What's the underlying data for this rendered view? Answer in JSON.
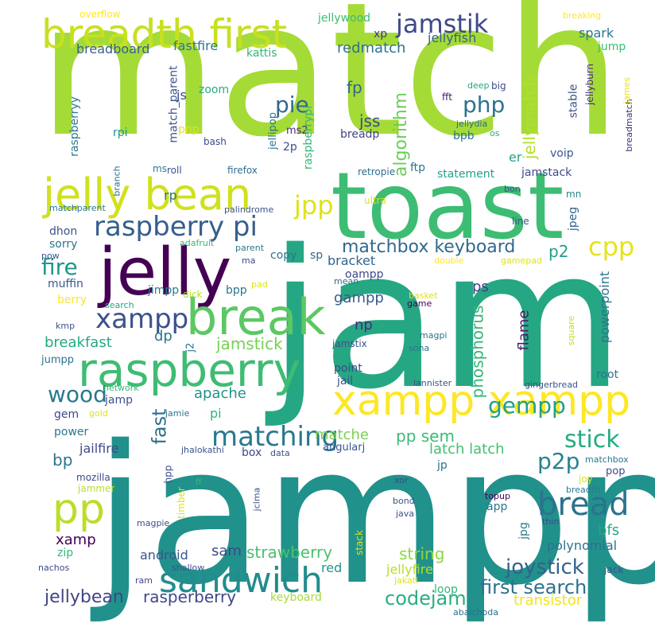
{
  "words": [
    {
      "text": "match",
      "color": "#a5db36"
    },
    {
      "text": "jampp",
      "color": "#21918c"
    },
    {
      "text": "jam",
      "color": "#26a784"
    },
    {
      "text": "toast",
      "color": "#3dbc74"
    },
    {
      "text": "jelly",
      "color": "#440154"
    },
    {
      "text": "breadth first",
      "color": "#c8e020"
    },
    {
      "text": "jelly bean",
      "color": "#d0e11c"
    },
    {
      "text": "break",
      "color": "#5cc863"
    },
    {
      "text": "raspberry",
      "color": "#3fbc73"
    },
    {
      "text": "xampp xampp",
      "color": "#fde725"
    },
    {
      "text": "raspberry pi",
      "color": "#355f8d"
    },
    {
      "text": "xampp",
      "color": "#3b528b"
    },
    {
      "text": "pp",
      "color": "#bade28"
    },
    {
      "text": "sandwich",
      "color": "#228c8d"
    },
    {
      "text": "bread",
      "color": "#2c728e"
    },
    {
      "text": "matching",
      "color": "#2a788e"
    },
    {
      "text": "jamstik",
      "color": "#3e4989"
    },
    {
      "text": "jpp",
      "color": "#dde318"
    },
    {
      "text": "cpp",
      "color": "#e5e419"
    },
    {
      "text": "php",
      "color": "#2c738e"
    },
    {
      "text": "pie",
      "color": "#30698e"
    },
    {
      "text": "matchbox keyboard",
      "color": "#31688e"
    },
    {
      "text": "fire",
      "color": "#1f978b"
    },
    {
      "text": "wood",
      "color": "#2a788e"
    },
    {
      "text": "stick",
      "color": "#25ab82"
    },
    {
      "text": "p2p",
      "color": "#26828e"
    },
    {
      "text": "gempp",
      "color": "#1fa188"
    },
    {
      "text": "joystick",
      "color": "#33638d"
    },
    {
      "text": "first search",
      "color": "#2d718e"
    },
    {
      "text": "codejam",
      "color": "#29af7f"
    },
    {
      "text": "jellybean",
      "color": "#414487"
    },
    {
      "text": "rasperberry",
      "color": "#3f4788"
    },
    {
      "text": "strawberry",
      "color": "#4ac16d"
    },
    {
      "text": "string",
      "color": "#8fd744"
    },
    {
      "text": "algorithm",
      "color": "#6ccd5a"
    },
    {
      "text": "jellymatch",
      "color": "#b5de2b"
    },
    {
      "text": "phosphorus",
      "color": "#35b779"
    },
    {
      "text": "fast",
      "color": "#2e6f8e"
    },
    {
      "text": "jamstick",
      "color": "#75d054"
    },
    {
      "text": "pp sem",
      "color": "#3bbb75"
    },
    {
      "text": "latch latch",
      "color": "#42be71"
    },
    {
      "text": "breakfast",
      "color": "#23a983"
    },
    {
      "text": "apache",
      "color": "#20928c"
    },
    {
      "text": "jailfire",
      "color": "#3e4a89"
    },
    {
      "text": "matche",
      "color": "#7ad151"
    },
    {
      "text": "redmatch",
      "color": "#2d718e"
    },
    {
      "text": "jellyfish",
      "color": "#34608d"
    },
    {
      "text": "spark",
      "color": "#2b758e"
    },
    {
      "text": "fp",
      "color": "#33638d"
    },
    {
      "text": "jss",
      "color": "#3e4989"
    },
    {
      "text": "p2",
      "color": "#1f9e89"
    },
    {
      "text": "gampp",
      "color": "#38588c"
    },
    {
      "text": "ps",
      "color": "#424086"
    },
    {
      "text": "np",
      "color": "#472a7a"
    },
    {
      "text": "flame",
      "color": "#481b6d"
    },
    {
      "text": "powerpoint",
      "color": "#2c728e"
    },
    {
      "text": "bp",
      "color": "#2a768e"
    },
    {
      "text": "dp",
      "color": "#2a778e"
    },
    {
      "text": "pi",
      "color": "#2fb47c"
    },
    {
      "text": "bracket",
      "color": "#32648e"
    },
    {
      "text": "transistor",
      "color": "#f1e51d"
    },
    {
      "text": "bfs",
      "color": "#22a785"
    },
    {
      "text": "polynomial",
      "color": "#2d718e"
    },
    {
      "text": "xamp",
      "color": "#440154"
    },
    {
      "text": "sam",
      "color": "#3e4a89"
    },
    {
      "text": "android",
      "color": "#39568c"
    },
    {
      "text": "red",
      "color": "#20928c"
    },
    {
      "text": "jellyfire",
      "color": "#b5de2b"
    },
    {
      "text": "keyboard",
      "color": "#a8db34"
    },
    {
      "text": "loop",
      "color": "#35b779"
    },
    {
      "text": "breadboard",
      "color": "#35608d"
    },
    {
      "text": "fastfire",
      "color": "#2a788e"
    },
    {
      "text": "kattis",
      "color": "#31b57b"
    },
    {
      "text": "jellywood",
      "color": "#3dbc74"
    },
    {
      "text": "xp",
      "color": "#453882"
    },
    {
      "text": "jump",
      "color": "#3bbb75"
    },
    {
      "text": "overflow",
      "color": "#fde725"
    },
    {
      "text": "breaking",
      "color": "#fde725"
    },
    {
      "text": "zoom",
      "color": "#25ac82"
    },
    {
      "text": "js",
      "color": "#3e4989"
    },
    {
      "text": "match_parent",
      "color": "#3a548c"
    },
    {
      "text": "raspberryy",
      "color": "#2a788e"
    },
    {
      "text": "rpi",
      "color": "#20928c"
    },
    {
      "text": "pnp",
      "color": "#e2e418"
    },
    {
      "text": "bash",
      "color": "#3e4989"
    },
    {
      "text": "roll",
      "color": "#3b528b"
    },
    {
      "text": "firefox",
      "color": "#2d708e"
    },
    {
      "text": "ms2",
      "color": "#472c7a"
    },
    {
      "text": "2p",
      "color": "#3c4f8a"
    },
    {
      "text": "jellipop",
      "color": "#2a768e"
    },
    {
      "text": "raspberrypi",
      "color": "#35b779"
    },
    {
      "text": "breadp",
      "color": "#414487"
    },
    {
      "text": "bpb",
      "color": "#2c738e"
    },
    {
      "text": "ftp",
      "color": "#2c738e"
    },
    {
      "text": "retropie",
      "color": "#2f6c8e"
    },
    {
      "text": "statement",
      "color": "#1fa188"
    },
    {
      "text": "jamstack",
      "color": "#3e4989"
    },
    {
      "text": "voip",
      "color": "#38588c"
    },
    {
      "text": "stable",
      "color": "#3b528b"
    },
    {
      "text": "jellyburn",
      "color": "#472d7b"
    },
    {
      "text": "breadmatch",
      "color": "#472c7a"
    },
    {
      "text": "james",
      "color": "#e5e419"
    },
    {
      "text": "big",
      "color": "#3e4a89"
    },
    {
      "text": "deep",
      "color": "#21a585"
    },
    {
      "text": "fft",
      "color": "#481769"
    },
    {
      "text": "jellydia",
      "color": "#2f6c8e"
    },
    {
      "text": "os",
      "color": "#29af7f"
    },
    {
      "text": "er",
      "color": "#20a486"
    },
    {
      "text": "bon",
      "color": "#3b528b"
    },
    {
      "text": "mn",
      "color": "#26828e"
    },
    {
      "text": "ultra",
      "color": "#dde318"
    },
    {
      "text": "line",
      "color": "#3b528b"
    },
    {
      "text": "jpeg",
      "color": "#34608d"
    },
    {
      "text": "matchparent",
      "color": "#2a788e"
    },
    {
      "text": "palindrome",
      "color": "#3a548c"
    },
    {
      "text": "branch",
      "color": "#31688e"
    },
    {
      "text": "ms",
      "color": "#287c8e"
    },
    {
      "text": "rp",
      "color": "#2c738e"
    },
    {
      "text": "dhon",
      "color": "#3b528b"
    },
    {
      "text": "sorry",
      "color": "#2c738e"
    },
    {
      "text": "pow",
      "color": "#3b528b"
    },
    {
      "text": "adafruit",
      "color": "#35b779"
    },
    {
      "text": "parent",
      "color": "#2a788e"
    },
    {
      "text": "ma",
      "color": "#3e4989"
    },
    {
      "text": "copy",
      "color": "#2c738e"
    },
    {
      "text": "sp",
      "color": "#31688e"
    },
    {
      "text": "oampp",
      "color": "#3e4989"
    },
    {
      "text": "double",
      "color": "#fde725"
    },
    {
      "text": "gamepad",
      "color": "#dde318"
    },
    {
      "text": "muffin",
      "color": "#38588c"
    },
    {
      "text": "jimpp",
      "color": "#287c8e"
    },
    {
      "text": "bpp",
      "color": "#2c738e"
    },
    {
      "text": "berry",
      "color": "#fde725"
    },
    {
      "text": "search",
      "color": "#22a785"
    },
    {
      "text": "kmp",
      "color": "#3b528b"
    },
    {
      "text": "dick",
      "color": "#b5de2b"
    },
    {
      "text": "pad",
      "color": "#dde318"
    },
    {
      "text": "mean",
      "color": "#2c738e"
    },
    {
      "text": "basket",
      "color": "#dde318"
    },
    {
      "text": "game",
      "color": "#440154"
    },
    {
      "text": "magpi",
      "color": "#2c738e"
    },
    {
      "text": "jamstix",
      "color": "#3b528b"
    },
    {
      "text": "sona",
      "color": "#2c738e"
    },
    {
      "text": "square",
      "color": "#c8e020"
    },
    {
      "text": "j2",
      "color": "#2a788e"
    },
    {
      "text": "jumpp",
      "color": "#2c738e"
    },
    {
      "text": "point",
      "color": "#3e4989"
    },
    {
      "text": "jail",
      "color": "#38588c"
    },
    {
      "text": "lannister",
      "color": "#3b528b"
    },
    {
      "text": "gingerbread",
      "color": "#3b528b"
    },
    {
      "text": "root",
      "color": "#2c738e"
    },
    {
      "text": "network",
      "color": "#35b779"
    },
    {
      "text": "jamp",
      "color": "#3b528b"
    },
    {
      "text": "gem",
      "color": "#3e4989"
    },
    {
      "text": "gold",
      "color": "#dde318"
    },
    {
      "text": "jamie",
      "color": "#2c738e"
    },
    {
      "text": "power",
      "color": "#2a788e"
    },
    {
      "text": "jhalokathi",
      "color": "#3b528b"
    },
    {
      "text": "box",
      "color": "#3e4989"
    },
    {
      "text": "angularj",
      "color": "#3a548c"
    },
    {
      "text": "data",
      "color": "#3b528b"
    },
    {
      "text": "jp",
      "color": "#2c738e"
    },
    {
      "text": "matchbox",
      "color": "#2a788e"
    },
    {
      "text": "pop",
      "color": "#3e4989"
    },
    {
      "text": "joy",
      "color": "#dde318"
    },
    {
      "text": "mozilla",
      "color": "#3e4989"
    },
    {
      "text": "hpp",
      "color": "#3e4989"
    },
    {
      "text": "jammer",
      "color": "#b5de2b"
    },
    {
      "text": "timber",
      "color": "#dde318"
    },
    {
      "text": "ff",
      "color": "#35b779"
    },
    {
      "text": "jclma",
      "color": "#3b528b"
    },
    {
      "text": "xor",
      "color": "#3e4989"
    },
    {
      "text": "topup",
      "color": "#440154"
    },
    {
      "text": "breadth",
      "color": "#2a788e"
    },
    {
      "text": "bond",
      "color": "#3b528b"
    },
    {
      "text": "java",
      "color": "#3b528b"
    },
    {
      "text": "app",
      "color": "#2c738e"
    },
    {
      "text": "jpg",
      "color": "#2a788e"
    },
    {
      "text": "thin",
      "color": "#3e4989"
    },
    {
      "text": "zip",
      "color": "#35b779"
    },
    {
      "text": "magpie",
      "color": "#3b528b"
    },
    {
      "text": "nachos",
      "color": "#3e4989"
    },
    {
      "text": "shallow",
      "color": "#3b528b"
    },
    {
      "text": "ram",
      "color": "#3e4989"
    },
    {
      "text": "stack",
      "color": "#dde318"
    },
    {
      "text": "jakati",
      "color": "#dde318"
    },
    {
      "text": "jack",
      "color": "#3b528b"
    },
    {
      "text": "abalchoda",
      "color": "#2c738e"
    }
  ]
}
